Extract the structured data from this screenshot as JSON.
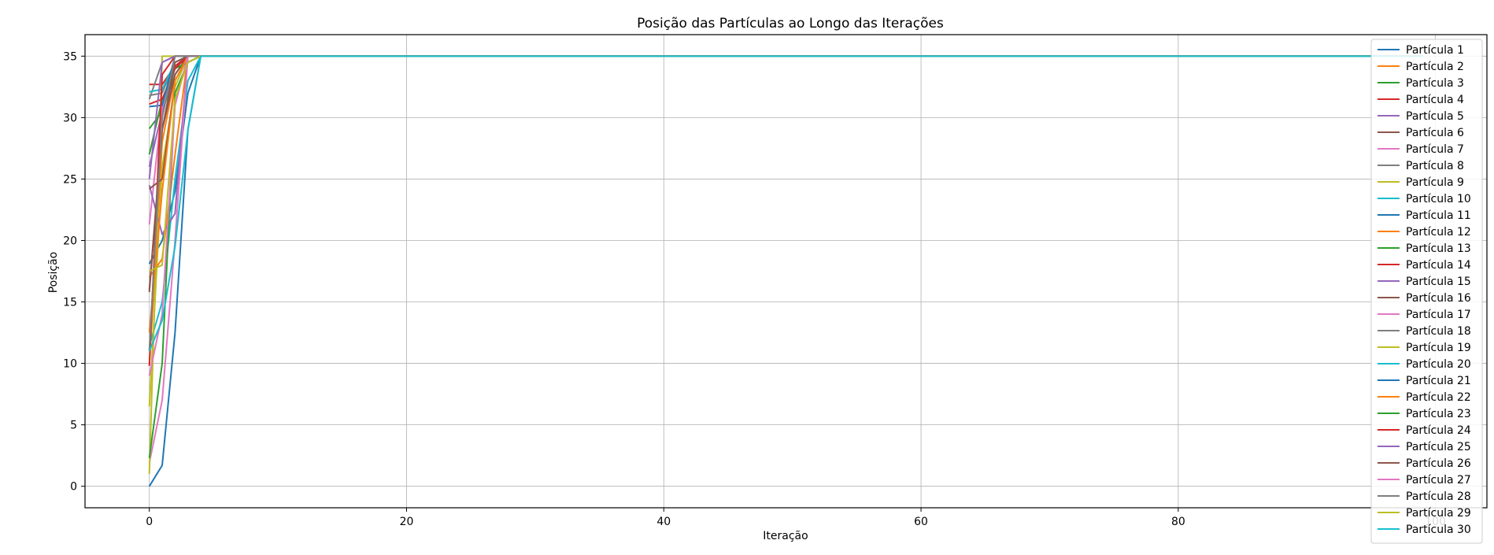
{
  "chart_data": {
    "type": "line",
    "title": "Posição das Partículas ao Longo das Iterações",
    "xlabel": "Iteração",
    "ylabel": "Posição",
    "xlim": [
      -5,
      104
    ],
    "ylim": [
      -1.75,
      36.75
    ],
    "xticks": [
      0,
      20,
      40,
      60,
      80,
      100
    ],
    "yticks": [
      0,
      5,
      10,
      15,
      20,
      25,
      30,
      35
    ],
    "grid": true,
    "legend_position": "right",
    "series": [
      {
        "name": "Partícula 1",
        "color": "#1f77b4",
        "values": [
          18.1,
          20.0,
          24.0,
          32.0,
          35
        ]
      },
      {
        "name": "Partícula 2",
        "color": "#ff7f0e",
        "values": [
          9.8,
          28.0,
          33.5,
          35,
          35
        ]
      },
      {
        "name": "Partícula 3",
        "color": "#2ca02c",
        "values": [
          29.1,
          30.5,
          33.5,
          35,
          35
        ]
      },
      {
        "name": "Partícula 4",
        "color": "#d62728",
        "values": [
          32.7,
          32.7,
          34.2,
          35,
          35
        ]
      },
      {
        "name": "Partícula 5",
        "color": "#9467bd",
        "values": [
          26.0,
          30.5,
          34.0,
          35,
          35
        ]
      },
      {
        "name": "Partícula 6",
        "color": "#8c564b",
        "values": [
          15.8,
          29.0,
          33.5,
          35,
          35
        ]
      },
      {
        "name": "Partícula 7",
        "color": "#e377c2",
        "values": [
          21.3,
          31.0,
          34.5,
          35,
          35
        ]
      },
      {
        "name": "Partícula 8",
        "color": "#7f7f7f",
        "values": [
          31.8,
          32.0,
          34.5,
          35,
          35
        ]
      },
      {
        "name": "Partícula 9",
        "color": "#bcbd22",
        "values": [
          6.5,
          26.0,
          32.5,
          35,
          35
        ]
      },
      {
        "name": "Partícula 10",
        "color": "#17becf",
        "values": [
          11.4,
          15.0,
          25.0,
          33.0,
          35
        ]
      },
      {
        "name": "Partícula 11",
        "color": "#1f77b4",
        "values": [
          0.0,
          1.7,
          12.5,
          29.0,
          35
        ]
      },
      {
        "name": "Partícula 12",
        "color": "#ff7f0e",
        "values": [
          17.0,
          18.5,
          27.0,
          35,
          35
        ]
      },
      {
        "name": "Partícula 13",
        "color": "#2ca02c",
        "values": [
          27.0,
          31.5,
          34.0,
          34.5,
          35
        ]
      },
      {
        "name": "Partícula 14",
        "color": "#d62728",
        "values": [
          31.1,
          31.5,
          34.0,
          35,
          35
        ]
      },
      {
        "name": "Partícula 15",
        "color": "#9467bd",
        "values": [
          24.5,
          20.5,
          22.2,
          35,
          35
        ]
      },
      {
        "name": "Partícula 16",
        "color": "#8c564b",
        "values": [
          24.2,
          25.0,
          33.0,
          35,
          35
        ]
      },
      {
        "name": "Partícula 17",
        "color": "#e377c2",
        "values": [
          1.9,
          7.0,
          20.0,
          35,
          35
        ]
      },
      {
        "name": "Partícula 18",
        "color": "#7f7f7f",
        "values": [
          31.5,
          34.5,
          35,
          35,
          35
        ]
      },
      {
        "name": "Partícula 19",
        "color": "#bcbd22",
        "values": [
          1.0,
          35,
          35,
          35,
          35
        ]
      },
      {
        "name": "Partícula 20",
        "color": "#17becf",
        "values": [
          32.1,
          32.3,
          34.5,
          35,
          35
        ]
      },
      {
        "name": "Partícula 21",
        "color": "#1f77b4",
        "values": [
          30.9,
          31.0,
          35,
          35,
          35
        ]
      },
      {
        "name": "Partícula 22",
        "color": "#ff7f0e",
        "values": [
          12.5,
          24.0,
          33.0,
          35,
          35
        ]
      },
      {
        "name": "Partícula 23",
        "color": "#2ca02c",
        "values": [
          2.3,
          10.0,
          32.0,
          34.5,
          35
        ]
      },
      {
        "name": "Partícula 24",
        "color": "#d62728",
        "values": [
          9.8,
          33.5,
          35,
          35,
          35
        ]
      },
      {
        "name": "Partícula 25",
        "color": "#9467bd",
        "values": [
          25.0,
          34.5,
          35,
          35,
          35
        ]
      },
      {
        "name": "Partícula 26",
        "color": "#8c564b",
        "values": [
          16.0,
          29.0,
          34.5,
          35,
          35
        ]
      },
      {
        "name": "Partícula 27",
        "color": "#e377c2",
        "values": [
          9.0,
          14.0,
          31.0,
          35,
          35
        ]
      },
      {
        "name": "Partícula 28",
        "color": "#7f7f7f",
        "values": [
          11.0,
          30.0,
          35,
          35,
          35
        ]
      },
      {
        "name": "Partícula 29",
        "color": "#bcbd22",
        "values": [
          17.5,
          18.0,
          31.5,
          34.5,
          35
        ]
      },
      {
        "name": "Partícula 30",
        "color": "#17becf",
        "values": [
          11.0,
          13.5,
          19.5,
          29.0,
          35
        ]
      }
    ],
    "n_iterations": 100,
    "converged_value": 35
  }
}
